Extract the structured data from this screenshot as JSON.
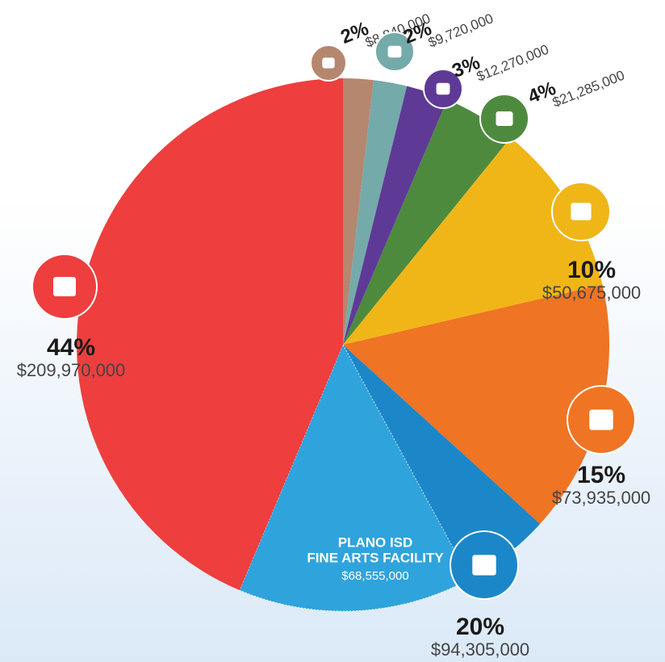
{
  "chart_data": {
    "type": "pie",
    "slices": [
      {
        "percent_label": "2%",
        "value": 8840000,
        "value_label": "$8,840,000",
        "color": "#b5876e"
      },
      {
        "percent_label": "2%",
        "value": 9720000,
        "value_label": "$9,720,000",
        "color": "#74aaa9"
      },
      {
        "percent_label": "3%",
        "value": 12270000,
        "value_label": "$12,270,000",
        "color": "#5e3a96"
      },
      {
        "percent_label": "4%",
        "value": 21285000,
        "value_label": "$21,285,000",
        "color": "#4e8a3e"
      },
      {
        "percent_label": "10%",
        "value": 50675000,
        "value_label": "$50,675,000",
        "color": "#f0b618"
      },
      {
        "percent_label": "15%",
        "value": 73935000,
        "value_label": "$73,935,000",
        "color": "#ef7424"
      },
      {
        "percent_label": "20%",
        "value": 94305000,
        "value_label": "$94,305,000",
        "color": "#1b87c9",
        "sub_slice": {
          "lines": [
            "PLANO ISD",
            "FINE ARTS FACILITY"
          ],
          "value": 68555000,
          "value_label": "$68,555,000",
          "color": "#2fa3dc"
        }
      },
      {
        "percent_label": "44%",
        "value": 209970000,
        "value_label": "$209,970,000",
        "color": "#ee3e3e"
      }
    ]
  }
}
